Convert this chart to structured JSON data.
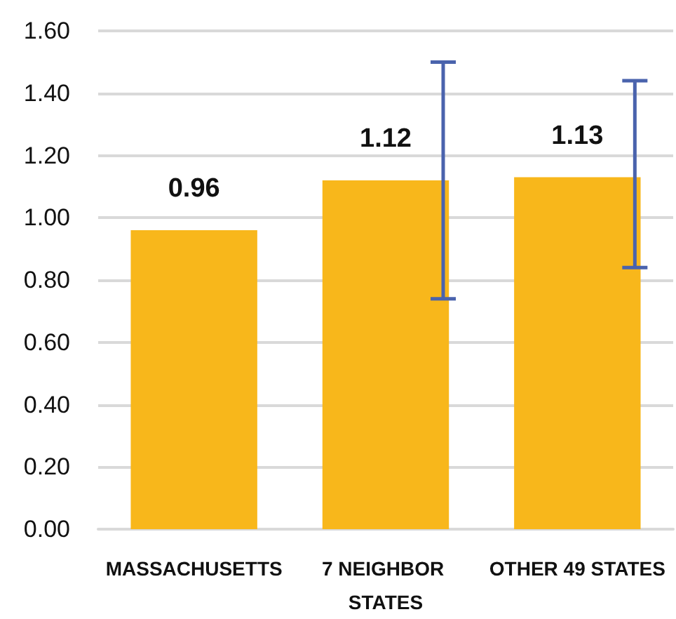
{
  "chart_data": {
    "type": "bar",
    "categories": [
      "MASSACHUSETTS",
      "7 NEIGHBOR STATES",
      "OTHER 49 STATES"
    ],
    "values": [
      0.96,
      1.12,
      1.13
    ],
    "errors": [
      null,
      [
        0.74,
        1.5
      ],
      [
        0.84,
        1.44
      ]
    ],
    "color": "#f8b71b",
    "data_labels": true,
    "ylim": [
      0,
      1.6
    ],
    "yticks": [
      {
        "value": 0,
        "label": "0.00"
      },
      {
        "value": 0.2,
        "label": "0.20"
      },
      {
        "value": 0.4,
        "label": "0.40"
      },
      {
        "value": 0.6,
        "label": "0.60"
      },
      {
        "value": 0.8,
        "label": "0.80"
      },
      {
        "value": 1,
        "label": "1.00"
      },
      {
        "value": 1.2,
        "label": "1.20"
      },
      {
        "value": 1.4,
        "label": "1.40"
      },
      {
        "value": 1.6,
        "label": "1.60"
      }
    ],
    "grid": "y"
  }
}
